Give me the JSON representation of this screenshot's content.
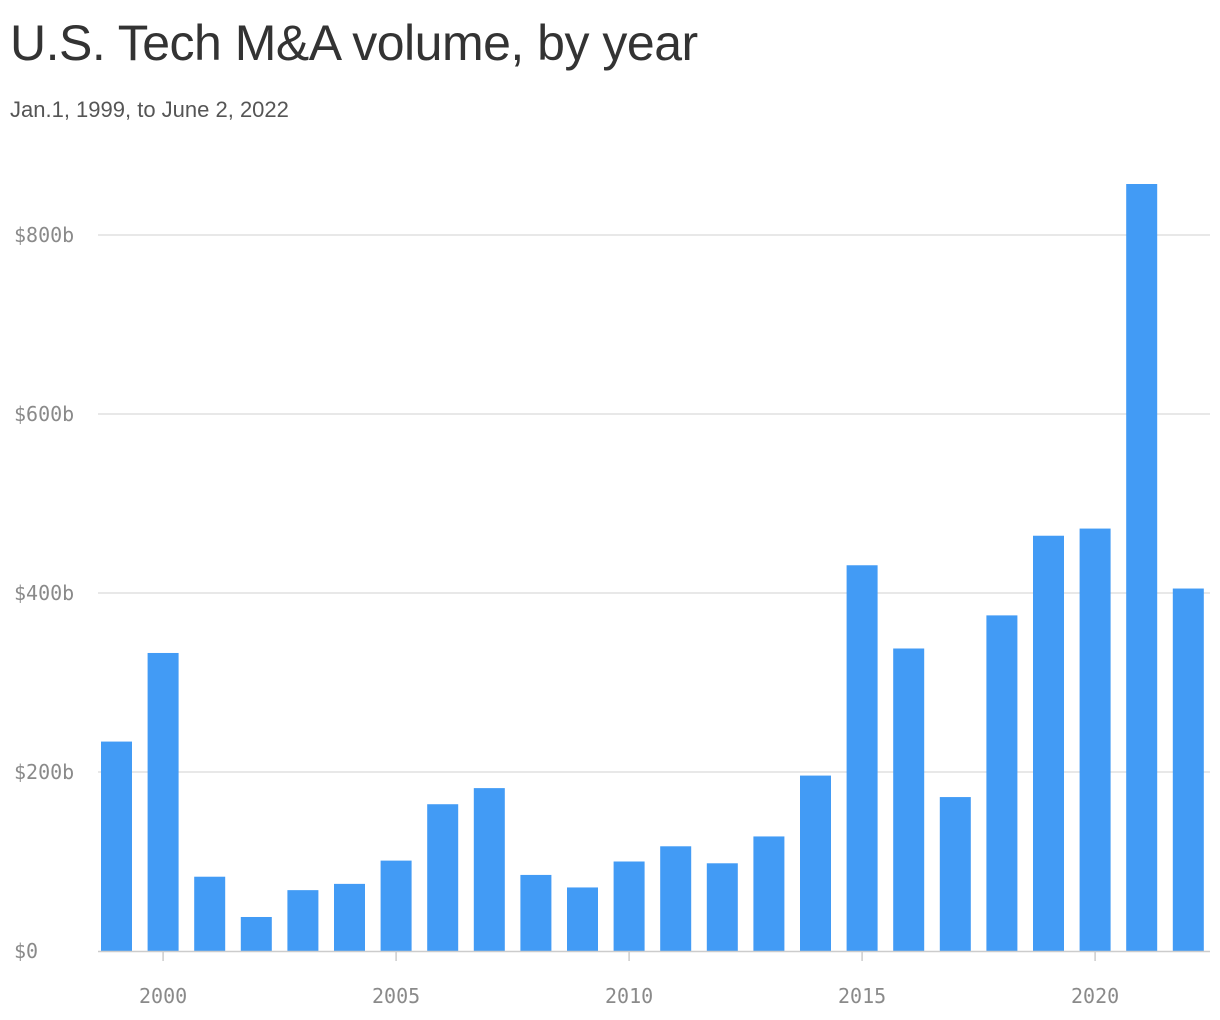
{
  "title": "U.S. Tech M&A volume, by year",
  "subtitle": "Jan.1, 1999, to June 2, 2022",
  "colors": {
    "bar": "#429bf5",
    "grid": "#e0e0e0",
    "axis": "#cccccc",
    "tick_text": "#8a8a8a",
    "title": "#333333",
    "subtitle": "#555555"
  },
  "chart_data": {
    "type": "bar",
    "title": "U.S. Tech M&A volume, by year",
    "subtitle": "Jan.1, 1999, to June 2, 2022",
    "xlabel": "",
    "ylabel": "",
    "unit": "billion USD",
    "categories": [
      1999,
      2000,
      2001,
      2002,
      2003,
      2004,
      2005,
      2006,
      2007,
      2008,
      2009,
      2010,
      2011,
      2012,
      2013,
      2014,
      2015,
      2016,
      2017,
      2018,
      2019,
      2020,
      2021,
      2022
    ],
    "values": [
      234,
      333,
      83,
      38,
      68,
      75,
      101,
      164,
      182,
      85,
      71,
      100,
      117,
      98,
      128,
      196,
      431,
      338,
      172,
      375,
      464,
      472,
      857,
      405
    ],
    "ylim": [
      0,
      857
    ],
    "y_ticks": [
      0,
      200,
      400,
      600,
      800
    ],
    "y_tick_labels": [
      "$0",
      "$200b",
      "$400b",
      "$600b",
      "$800b"
    ],
    "x_ticks": [
      2000,
      2005,
      2010,
      2015,
      2020
    ],
    "x_tick_labels": [
      "2000",
      "2005",
      "2010",
      "2015",
      "2020"
    ],
    "grid": true,
    "legend": "none"
  }
}
